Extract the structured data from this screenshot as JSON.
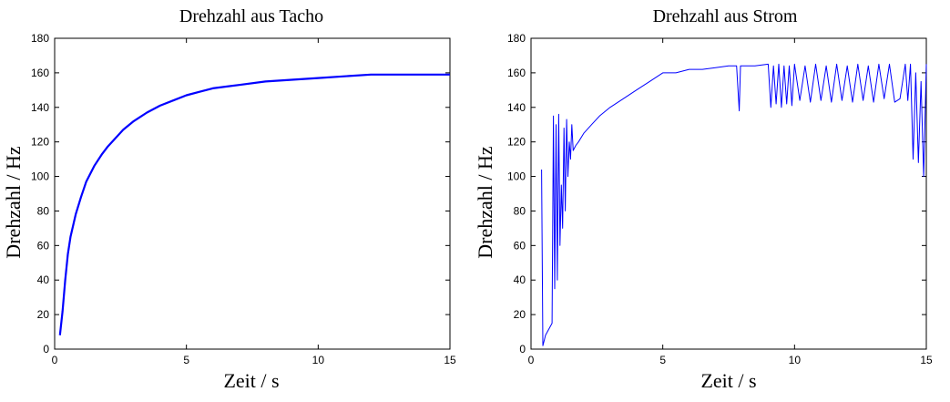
{
  "chart_data": [
    {
      "id": "tacho",
      "type": "line",
      "title": "Drehzahl aus Tacho",
      "xlabel": "Zeit / s",
      "ylabel": "Drehzahl / Hz",
      "xlim": [
        0,
        15
      ],
      "ylim": [
        0,
        180
      ],
      "xticks": [
        0,
        5,
        10,
        15
      ],
      "yticks": [
        0,
        20,
        40,
        60,
        80,
        100,
        120,
        140,
        160,
        180
      ],
      "grid": false,
      "line_color": "#0000ff",
      "series": [
        {
          "x": [
            0.2,
            0.3,
            0.4,
            0.5,
            0.6,
            0.8,
            1.0,
            1.2,
            1.5,
            1.8,
            2.0,
            2.3,
            2.6,
            3.0,
            3.5,
            4.0,
            4.5,
            5.0,
            5.5,
            6.0,
            7.0,
            8.0,
            9.0,
            10.0,
            11.0,
            12.0,
            13.0,
            14.0,
            15.0
          ],
          "y": [
            8,
            22,
            40,
            55,
            65,
            78,
            88,
            97,
            106,
            113,
            117,
            122,
            127,
            132,
            137,
            141,
            144,
            147,
            149,
            151,
            153,
            155,
            156,
            157,
            158,
            159,
            159,
            159,
            159
          ]
        }
      ]
    },
    {
      "id": "strom",
      "type": "line",
      "title": "Drehzahl aus Strom",
      "xlabel": "Zeit / s",
      "ylabel": "Drehzahl / Hz",
      "xlim": [
        0,
        15
      ],
      "ylim": [
        0,
        180
      ],
      "xticks": [
        0,
        5,
        10,
        15
      ],
      "yticks": [
        0,
        20,
        40,
        60,
        80,
        100,
        120,
        140,
        160,
        180
      ],
      "grid": false,
      "line_color": "#0000ff",
      "series": [
        {
          "x": [
            0.4,
            0.45,
            0.5,
            0.55,
            0.8,
            0.85,
            0.9,
            0.95,
            1.0,
            1.05,
            1.1,
            1.15,
            1.2,
            1.25,
            1.3,
            1.35,
            1.4,
            1.45,
            1.5,
            1.55,
            1.6,
            1.7,
            1.8,
            2.0,
            2.3,
            2.6,
            3.0,
            3.5,
            4.0,
            4.5,
            5.0,
            5.5,
            6.0,
            6.5,
            7.0,
            7.5,
            7.8,
            7.9,
            7.95,
            8.0,
            8.5,
            9.0,
            9.1,
            9.2,
            9.3,
            9.4,
            9.5,
            9.6,
            9.7,
            9.8,
            9.9,
            10.0,
            10.2,
            10.4,
            10.6,
            10.8,
            11.0,
            11.2,
            11.4,
            11.6,
            11.8,
            12.0,
            12.2,
            12.4,
            12.6,
            12.8,
            13.0,
            13.2,
            13.4,
            13.6,
            13.8,
            14.0,
            14.2,
            14.3,
            14.4,
            14.5,
            14.6,
            14.7,
            14.8,
            14.9,
            15.0
          ],
          "y": [
            104,
            2,
            5,
            8,
            15,
            135,
            35,
            130,
            40,
            136,
            60,
            95,
            70,
            128,
            80,
            133,
            100,
            120,
            110,
            130,
            115,
            118,
            120,
            125,
            130,
            135,
            140,
            145,
            150,
            155,
            160,
            160,
            162,
            162,
            163,
            164,
            164,
            138,
            164,
            164,
            164,
            165,
            140,
            164,
            142,
            165,
            140,
            164,
            142,
            164,
            141,
            165,
            144,
            164,
            143,
            165,
            144,
            164,
            143,
            165,
            144,
            164,
            143,
            165,
            144,
            164,
            143,
            165,
            145,
            165,
            143,
            145,
            165,
            144,
            165,
            110,
            160,
            108,
            155,
            100,
            165
          ]
        }
      ]
    }
  ]
}
